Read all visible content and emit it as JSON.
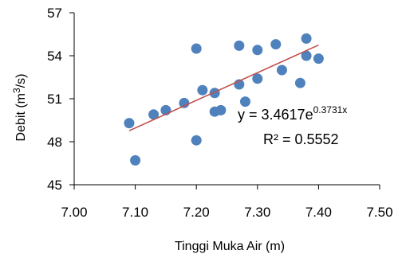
{
  "chart_data": {
    "type": "scatter",
    "xlabel": "Tinggi Muka Air  (m)",
    "ylabel_main": "Debit (m",
    "ylabel_sup": "3",
    "ylabel_end": "/s)",
    "xlim": [
      7.0,
      7.5
    ],
    "ylim": [
      45,
      57
    ],
    "x_ticks": [
      "7.00",
      "7.10",
      "7.20",
      "7.30",
      "7.40",
      "7.50"
    ],
    "y_ticks": [
      "45",
      "48",
      "51",
      "54",
      "57"
    ],
    "grid": false,
    "points": [
      {
        "x": 7.09,
        "y": 49.3
      },
      {
        "x": 7.1,
        "y": 46.7
      },
      {
        "x": 7.13,
        "y": 49.9
      },
      {
        "x": 7.15,
        "y": 50.2
      },
      {
        "x": 7.18,
        "y": 50.7
      },
      {
        "x": 7.2,
        "y": 54.5
      },
      {
        "x": 7.2,
        "y": 48.1
      },
      {
        "x": 7.21,
        "y": 51.6
      },
      {
        "x": 7.23,
        "y": 51.4
      },
      {
        "x": 7.23,
        "y": 50.1
      },
      {
        "x": 7.24,
        "y": 50.2
      },
      {
        "x": 7.27,
        "y": 54.7
      },
      {
        "x": 7.27,
        "y": 52.0
      },
      {
        "x": 7.28,
        "y": 50.8
      },
      {
        "x": 7.3,
        "y": 54.4
      },
      {
        "x": 7.3,
        "y": 52.4
      },
      {
        "x": 7.33,
        "y": 54.8
      },
      {
        "x": 7.34,
        "y": 53.0
      },
      {
        "x": 7.37,
        "y": 52.1
      },
      {
        "x": 7.38,
        "y": 55.2
      },
      {
        "x": 7.38,
        "y": 54.0
      },
      {
        "x": 7.4,
        "y": 53.8
      }
    ],
    "trendline": {
      "type": "exponential",
      "a": 3.4617,
      "b": 0.3731,
      "x_range": [
        7.09,
        7.4
      ],
      "color": "#c0504d"
    },
    "marker_color": "#4f81bd",
    "equation_main": "y = 3.4617e",
    "equation_exponent": "0.3731x",
    "r_squared": "R² = 0.5552"
  }
}
